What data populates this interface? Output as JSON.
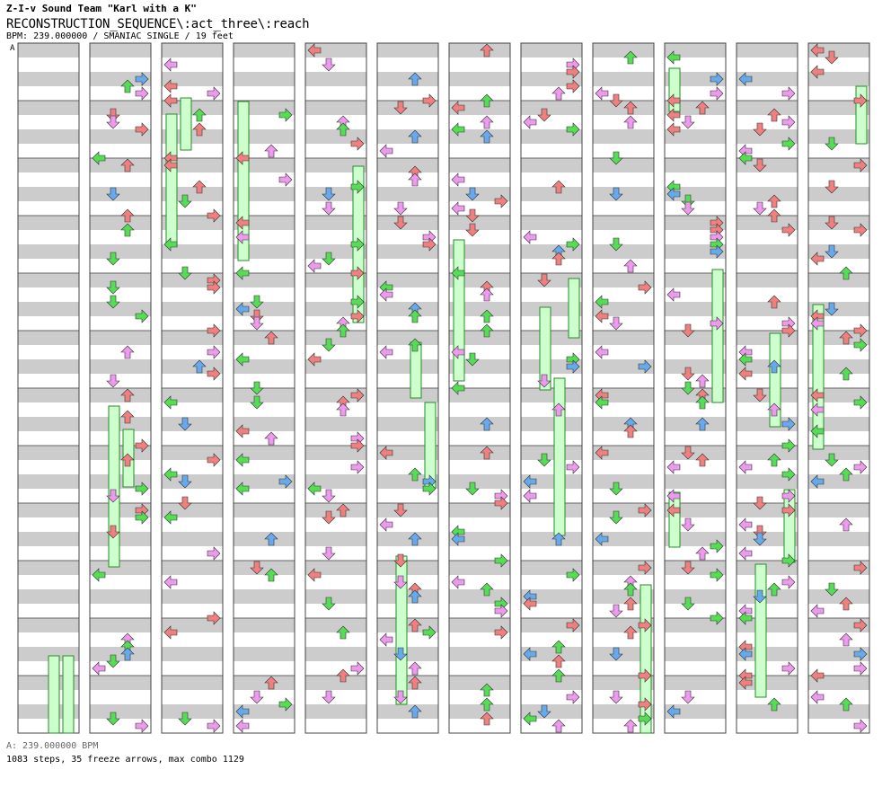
{
  "header": {
    "artist_line": "Z-I-v Sound Team \"Karl with a K\"",
    "title_line": "RECONSTRUCTION_SEQUENCE\\:act_three\\:reach",
    "info_line": "BPM: 239.000000 / SMANIAC SINGLE / 19 feet"
  },
  "footer": {
    "bpm_line": "A: 239.000000 BPM",
    "stats_line": "1083 steps, 35 freeze arrows, max combo 1129"
  },
  "chart_data": {
    "type": "step-chart",
    "game_mode": "single",
    "difficulty": "SMANIAC",
    "feet": 19,
    "bpm": 239.0,
    "bpm_segment_label": "A",
    "total_steps": 1083,
    "freeze_arrows": 35,
    "max_combo": 1129,
    "measures_per_column": 12,
    "column_count": 12,
    "lanes": [
      "left",
      "down",
      "up",
      "right"
    ]
  },
  "colors": {
    "note_4th": "#f08080",
    "note_8th": "#66aaee",
    "note_16th": "#ee99ee",
    "note_other": "#55dd55",
    "freeze": "#ccffcc",
    "stripe": "#cccccc"
  }
}
